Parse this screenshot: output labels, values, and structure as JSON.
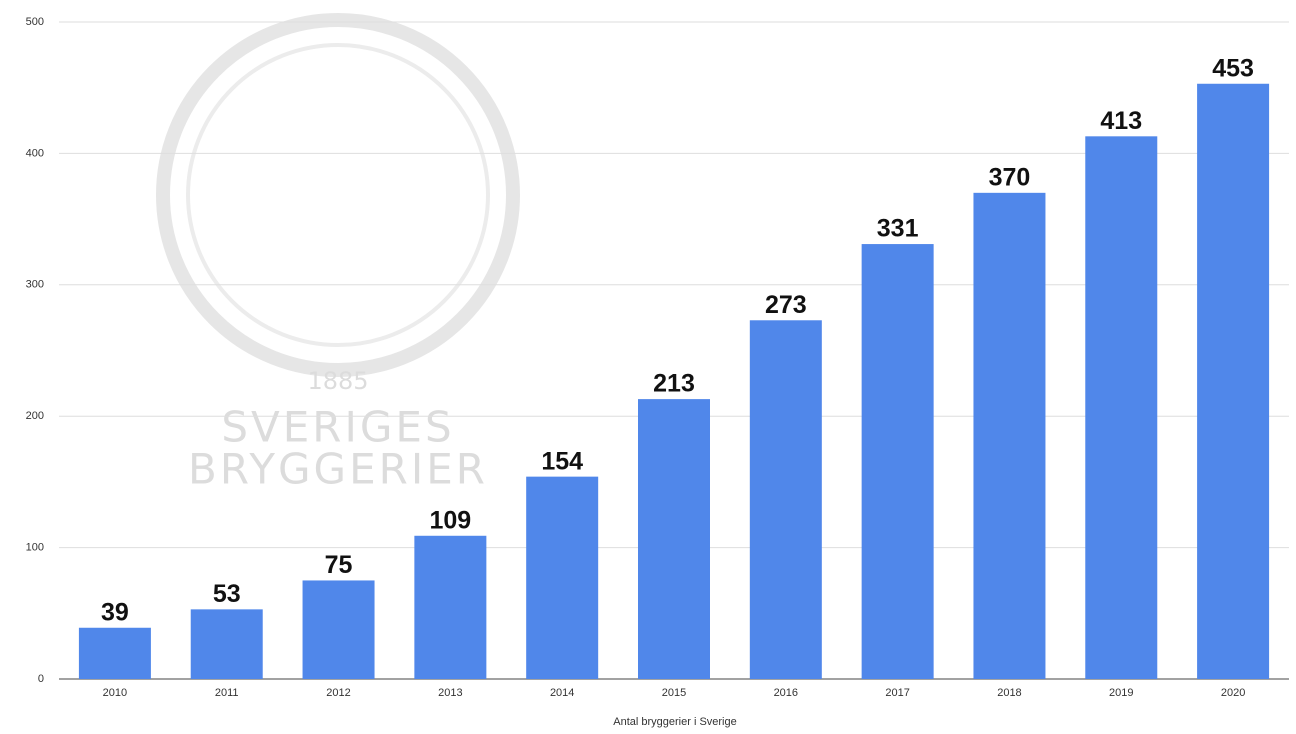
{
  "chart_data": {
    "type": "bar",
    "x_label": "Antal bryggerier i Sverige",
    "watermark": [
      "1885",
      "SVERIGES",
      "BRYGGERIER"
    ],
    "categories": [
      "2010",
      "2011",
      "2012",
      "2013",
      "2014",
      "2015",
      "2016",
      "2017",
      "2018",
      "2019",
      "2020"
    ],
    "values": [
      39,
      53,
      75,
      109,
      154,
      213,
      273,
      331,
      370,
      413,
      453
    ],
    "color": "#5087ea",
    "ylim": [
      0,
      500
    ],
    "yticks": [
      0,
      100,
      200,
      300,
      400,
      500
    ],
    "grid": true,
    "data_labels": true
  }
}
